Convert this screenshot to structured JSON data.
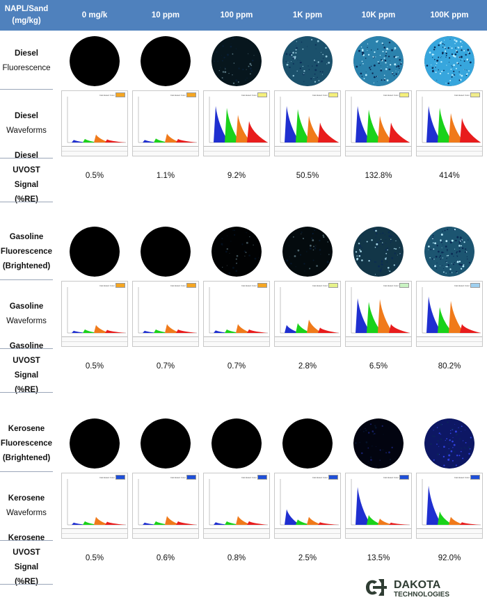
{
  "header": {
    "corner": [
      "NAPL/Sand",
      "(mg/kg)"
    ],
    "columns": [
      "0 mg/k",
      "10 ppm",
      "100 ppm",
      "1K ppm",
      "10K ppm",
      "100K ppm"
    ]
  },
  "sections": [
    {
      "id": "diesel",
      "fluor_label": [
        "Diesel",
        "Fluorescence"
      ],
      "wave_label": [
        "Diesel",
        "Waveforms"
      ],
      "signal_label": [
        "Diesel",
        "UVOST Signal",
        "(%RE)"
      ],
      "signal_values": [
        "0.5%",
        "1.1%",
        "9.2%",
        "50.5%",
        "132.8%",
        "414%"
      ],
      "legend_color": "#f5a623"
    },
    {
      "id": "gasoline",
      "fluor_label": [
        "Gasoline",
        "Fluorescence",
        "(Brightened)"
      ],
      "wave_label": [
        "Gasoline",
        "Waveforms"
      ],
      "signal_label": [
        "Gasoline",
        "UVOST Signal",
        "(%RE)"
      ],
      "signal_values": [
        "0.5%",
        "0.7%",
        "0.7%",
        "2.8%",
        "6.5%",
        "80.2%"
      ],
      "legend_color": "#f5a623"
    },
    {
      "id": "kerosene",
      "fluor_label": [
        "Kerosene",
        "Fluorescence",
        "(Brightened)"
      ],
      "wave_label": [
        "Kerosene",
        "Waveforms"
      ],
      "signal_label": [
        "Kerosene",
        "UVOST Signal",
        "(%RE)"
      ],
      "signal_values": [
        "0.5%",
        "0.6%",
        "0.8%",
        "2.5%",
        "13.5%",
        "92.0%"
      ],
      "legend_color": "#1e4fd8"
    }
  ],
  "waveform_data": {
    "diesel": [
      [
        0.06,
        0.08,
        0.18,
        0.07
      ],
      [
        0.06,
        0.09,
        0.2,
        0.08
      ],
      [
        0.82,
        0.78,
        0.62,
        0.48
      ],
      [
        0.82,
        0.75,
        0.6,
        0.45
      ],
      [
        0.82,
        0.74,
        0.6,
        0.45
      ],
      [
        0.82,
        0.78,
        0.66,
        0.55
      ]
    ],
    "gasoline": [
      [
        0.05,
        0.08,
        0.18,
        0.07
      ],
      [
        0.05,
        0.08,
        0.2,
        0.08
      ],
      [
        0.06,
        0.08,
        0.2,
        0.08
      ],
      [
        0.18,
        0.22,
        0.3,
        0.12
      ],
      [
        0.78,
        0.7,
        0.76,
        0.2
      ],
      [
        0.82,
        0.58,
        0.72,
        0.2
      ]
    ],
    "kerosene": [
      [
        0.05,
        0.08,
        0.18,
        0.07
      ],
      [
        0.05,
        0.08,
        0.2,
        0.08
      ],
      [
        0.06,
        0.08,
        0.2,
        0.08
      ],
      [
        0.35,
        0.12,
        0.18,
        0.06
      ],
      [
        0.85,
        0.22,
        0.14,
        0.05
      ],
      [
        0.88,
        0.3,
        0.18,
        0.06
      ]
    ]
  },
  "fluor_levels": {
    "diesel": [
      0,
      0,
      0.12,
      0.45,
      0.72,
      0.92
    ],
    "gasoline": [
      0,
      0,
      0.02,
      0.1,
      0.55,
      0.85
    ],
    "kerosene": [
      0,
      0,
      0,
      0,
      0.08,
      0.5
    ]
  },
  "waveform_legend": "Calculated Color",
  "colors": {
    "header_bg": "#4f81bd",
    "diesel_glow": "#3cb4f0",
    "kerosene_glow": "#1a2ec8",
    "peak_blue": "#1f2fd0",
    "peak_green": "#1ad21a",
    "peak_orange": "#f07a1a",
    "peak_red": "#e81c1c"
  },
  "logo": {
    "line1": "DAKOTA",
    "line2": "TECHNOLOGIES"
  }
}
